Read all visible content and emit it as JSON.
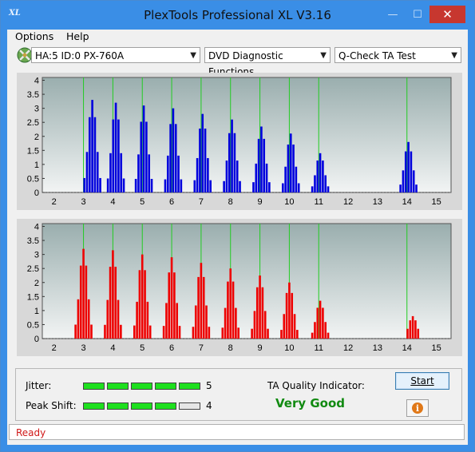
{
  "window": {
    "title": "PlexTools Professional XL V3.16",
    "icon_text": "XL"
  },
  "titlebar_buttons": {
    "minimize": "—",
    "maximize": "☐",
    "close": "✕"
  },
  "menu": [
    {
      "label": "Options"
    },
    {
      "label": "Help"
    }
  ],
  "toolbar": {
    "drive": "HA:5 ID:0  PX-760A",
    "function": "DVD Diagnostic Functions",
    "test": "Q-Check TA Test"
  },
  "chart_data": [
    {
      "type": "bar",
      "series_color": "#0000dd",
      "y_ticks": [
        "4",
        "3.5",
        "3",
        "2.5",
        "2",
        "1.5",
        "1",
        "0.5",
        "0"
      ],
      "x_ticks": [
        "2",
        "3",
        "4",
        "5",
        "6",
        "7",
        "8",
        "9",
        "10",
        "11",
        "12",
        "13",
        "14",
        "15"
      ],
      "ylim": [
        0,
        4.1
      ],
      "xlim": [
        1.6,
        15.5
      ],
      "green_lines": [
        3,
        4,
        5,
        6,
        7,
        8,
        9,
        10,
        11,
        14
      ],
      "peaks": [
        {
          "center": 3.3,
          "height": 3.3
        },
        {
          "center": 4.1,
          "height": 3.2
        },
        {
          "center": 5.05,
          "height": 3.1
        },
        {
          "center": 6.05,
          "height": 3.0
        },
        {
          "center": 7.05,
          "height": 2.8
        },
        {
          "center": 8.05,
          "height": 2.6
        },
        {
          "center": 9.05,
          "height": 2.35
        },
        {
          "center": 10.05,
          "height": 2.1
        },
        {
          "center": 11.05,
          "height": 1.4
        },
        {
          "center": 14.05,
          "height": 1.8
        }
      ]
    },
    {
      "type": "bar",
      "series_color": "#ee0000",
      "y_ticks": [
        "4",
        "3.5",
        "3",
        "2.5",
        "2",
        "1.5",
        "1",
        "0.5",
        "0"
      ],
      "x_ticks": [
        "2",
        "3",
        "4",
        "5",
        "6",
        "7",
        "8",
        "9",
        "10",
        "11",
        "12",
        "13",
        "14",
        "15"
      ],
      "ylim": [
        0,
        4.1
      ],
      "xlim": [
        1.6,
        15.5
      ],
      "green_lines": [
        3,
        4,
        5,
        6,
        7,
        8,
        9,
        10,
        11,
        14
      ],
      "peaks": [
        {
          "center": 3.0,
          "height": 3.2
        },
        {
          "center": 4.0,
          "height": 3.15
        },
        {
          "center": 5.0,
          "height": 3.0
        },
        {
          "center": 6.0,
          "height": 2.9
        },
        {
          "center": 7.0,
          "height": 2.7
        },
        {
          "center": 8.0,
          "height": 2.5
        },
        {
          "center": 9.0,
          "height": 2.25
        },
        {
          "center": 10.0,
          "height": 2.0
        },
        {
          "center": 11.05,
          "height": 1.35
        },
        {
          "center": 14.2,
          "height": 0.8
        }
      ]
    }
  ],
  "panel": {
    "jitter_label": "Jitter:",
    "jitter_value": "5",
    "jitter_level": 5,
    "peak_label": "Peak Shift:",
    "peak_value": "4",
    "peak_level": 4,
    "ta_label": "TA Quality Indicator:",
    "quality": "Very Good",
    "start_label": "Start",
    "info_icon": "i"
  },
  "status": {
    "text": "Ready"
  }
}
